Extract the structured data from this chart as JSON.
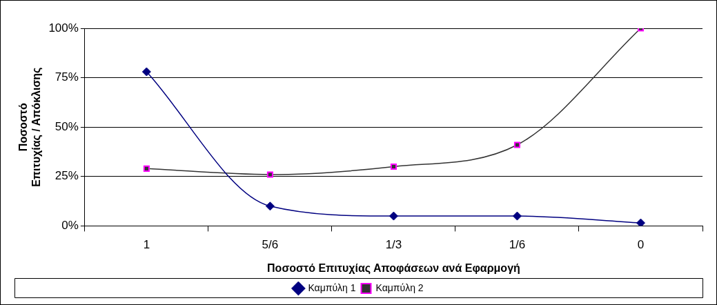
{
  "chart_data": {
    "type": "line",
    "xlabel": "Ποσοστό Επιτυχίας Αποφάσεων ανά Εφαρμογή",
    "ylabel": [
      "Ποσοστό",
      "Επιτυχίας / Απόκλισης"
    ],
    "categories": [
      "1",
      "5/6",
      "1/3",
      "1/6",
      "0"
    ],
    "series": [
      {
        "name": "Καμπύλη 1",
        "color": "#000080",
        "marker": "diamond",
        "values": [
          78,
          10,
          5,
          5,
          1.5
        ]
      },
      {
        "name": "Καμπύλη 2",
        "color": "#333333",
        "colors": [
          "#ff00ff",
          "#ff00ff",
          "#ff00ff",
          "#ff00ff",
          "#ff00ff"
        ],
        "marker": "square",
        "values": [
          29,
          26,
          30,
          41,
          100
        ]
      }
    ],
    "ylim": [
      0,
      100
    ],
    "yticks": [
      {
        "value": 0,
        "label": "0%"
      },
      {
        "value": 25,
        "label": "25%"
      },
      {
        "value": 50,
        "label": "50%"
      },
      {
        "value": 75,
        "label": "75%"
      },
      {
        "value": 100,
        "label": "100%"
      }
    ],
    "grid": "y",
    "legend": "bottom"
  }
}
